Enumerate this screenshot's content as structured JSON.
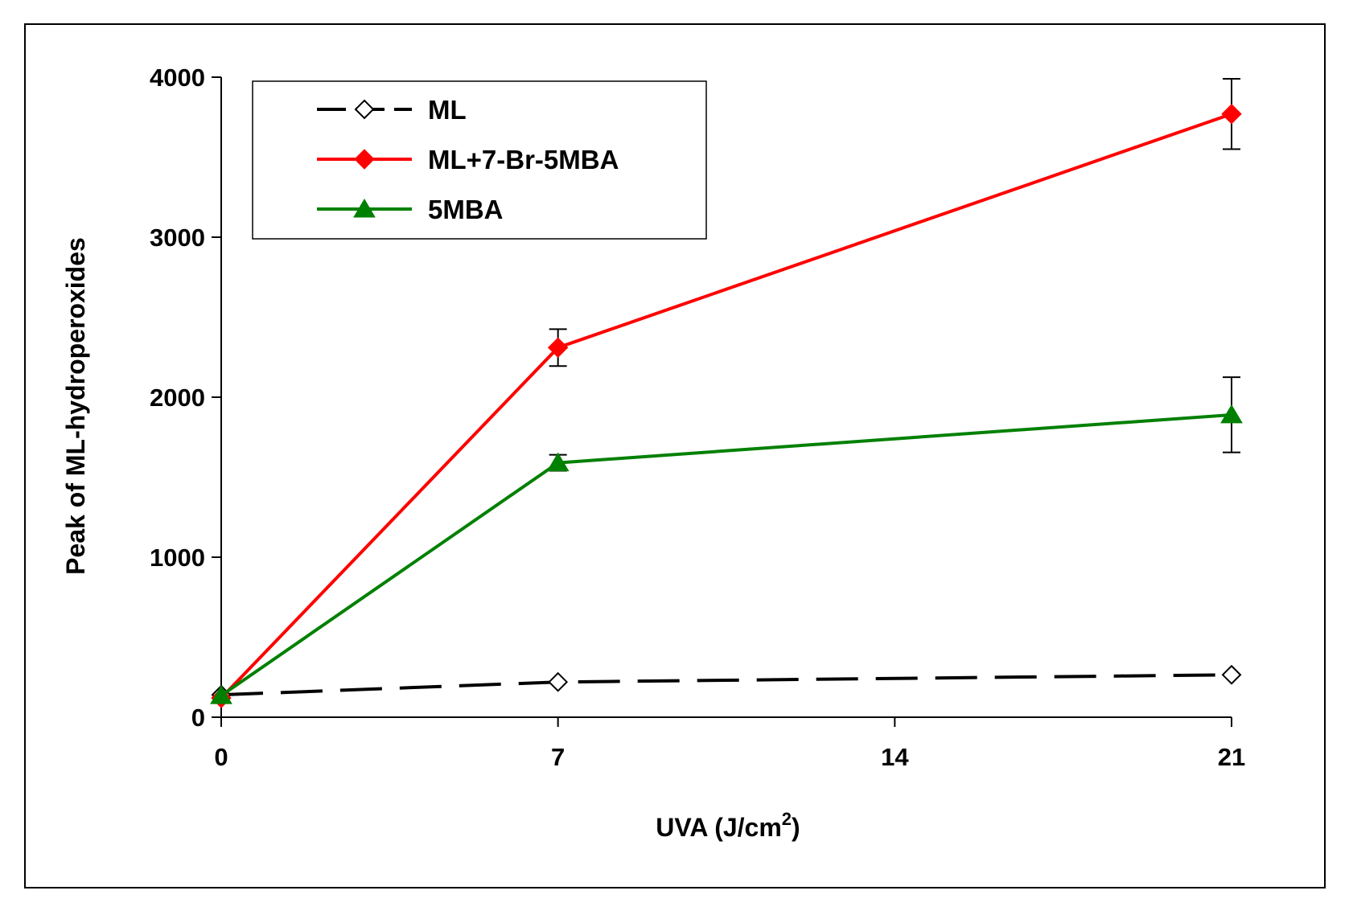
{
  "chart_data": {
    "type": "line",
    "title": "",
    "xlabel": "UVA (J/cm",
    "xlabel_superscript": "2",
    "xlabel_suffix": ")",
    "ylabel": "Peak of ML-hydroperoxides",
    "xlim": [
      0,
      21
    ],
    "ylim": [
      0,
      4000
    ],
    "x_ticks": [
      "0",
      "7",
      "14",
      "21"
    ],
    "y_ticks": [
      "0",
      "1000",
      "2000",
      "3000",
      "4000"
    ],
    "grid": false,
    "legend_position": "top-left",
    "series": [
      {
        "name": "ML",
        "x": [
          0,
          7,
          21
        ],
        "y": [
          140,
          220,
          265
        ],
        "error": [
          0,
          0,
          0
        ],
        "color": "#000000",
        "line_style": "dashed",
        "marker": "diamond-open"
      },
      {
        "name": "ML+7-Br-5MBA",
        "x": [
          0,
          7,
          21
        ],
        "y": [
          120,
          2310,
          3770
        ],
        "error": [
          0,
          115,
          220
        ],
        "color": "#ff0000",
        "line_style": "solid",
        "marker": "diamond-filled"
      },
      {
        "name": "5MBA",
        "x": [
          0,
          7,
          21
        ],
        "y": [
          135,
          1590,
          1890
        ],
        "error": [
          0,
          50,
          235
        ],
        "color": "#008000",
        "line_style": "solid",
        "marker": "triangle-filled"
      }
    ]
  }
}
